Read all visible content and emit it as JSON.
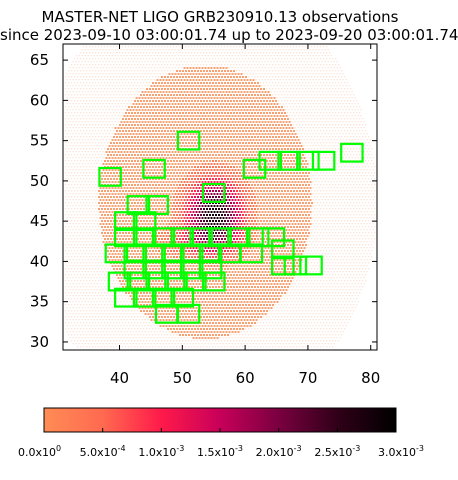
{
  "chart_data": {
    "type": "scatter",
    "title": "MASTER-NET LIGO GRB230910.13 observations",
    "subtitle": "since 2023-09-10 03:00:01.74 up to 2023-09-20 03:00:01.74",
    "xlim": [
      31,
      81
    ],
    "ylim": [
      29,
      67
    ],
    "x_ticks": [
      40,
      50,
      60,
      70,
      80
    ],
    "y_ticks": [
      30,
      35,
      40,
      45,
      50,
      55,
      60,
      65
    ],
    "grid": false,
    "probability_map": {
      "center": [
        53.5,
        47.5
      ],
      "radius_x": 17,
      "radius_y": 17,
      "peak": [
        55,
        46
      ],
      "peak_value": 0.003,
      "colorbar_min": 0,
      "colorbar_max": 0.003
    },
    "colorbar": {
      "ticks": [
        "0.0x10",
        "5.0x10",
        "1.0x10",
        "1.5x10",
        "2.0x10",
        "2.5x10",
        "3.0x10"
      ],
      "exponents": [
        "0",
        "-4",
        "-3",
        "-3",
        "-3",
        "-3",
        "-3"
      ],
      "colors": [
        "#ff8c55",
        "#ff6a50",
        "#ff1a4a",
        "#c8005a",
        "#7a0040",
        "#300018",
        "#000000"
      ]
    },
    "fields": [
      {
        "x": 51,
        "y": 55
      },
      {
        "x": 45.5,
        "y": 51.5
      },
      {
        "x": 38.5,
        "y": 50.5
      },
      {
        "x": 55,
        "y": 48.5
      },
      {
        "x": 61.5,
        "y": 51.5
      },
      {
        "x": 64,
        "y": 52.5
      },
      {
        "x": 67,
        "y": 52.5
      },
      {
        "x": 70,
        "y": 52.5
      },
      {
        "x": 72.5,
        "y": 52.5
      },
      {
        "x": 77,
        "y": 53.5
      },
      {
        "x": 43,
        "y": 47
      },
      {
        "x": 46,
        "y": 47
      },
      {
        "x": 41,
        "y": 45
      },
      {
        "x": 44,
        "y": 45
      },
      {
        "x": 41,
        "y": 43
      },
      {
        "x": 44,
        "y": 43
      },
      {
        "x": 47,
        "y": 43
      },
      {
        "x": 50,
        "y": 43
      },
      {
        "x": 53,
        "y": 43
      },
      {
        "x": 56,
        "y": 43
      },
      {
        "x": 59,
        "y": 43
      },
      {
        "x": 62,
        "y": 43
      },
      {
        "x": 64.5,
        "y": 43
      },
      {
        "x": 39.5,
        "y": 41
      },
      {
        "x": 42.5,
        "y": 41
      },
      {
        "x": 45.5,
        "y": 41
      },
      {
        "x": 48.5,
        "y": 41
      },
      {
        "x": 51.5,
        "y": 41
      },
      {
        "x": 54.5,
        "y": 41
      },
      {
        "x": 57.5,
        "y": 41
      },
      {
        "x": 61,
        "y": 41
      },
      {
        "x": 66,
        "y": 41.5
      },
      {
        "x": 66,
        "y": 39.5
      },
      {
        "x": 68,
        "y": 39.5
      },
      {
        "x": 70.5,
        "y": 39.5
      },
      {
        "x": 42.5,
        "y": 39
      },
      {
        "x": 45.5,
        "y": 39
      },
      {
        "x": 48.5,
        "y": 39
      },
      {
        "x": 51.5,
        "y": 39
      },
      {
        "x": 54.5,
        "y": 39
      },
      {
        "x": 40,
        "y": 37.5
      },
      {
        "x": 43,
        "y": 37.5
      },
      {
        "x": 46,
        "y": 37.5
      },
      {
        "x": 49,
        "y": 37.5
      },
      {
        "x": 52,
        "y": 37.5
      },
      {
        "x": 55,
        "y": 37.5
      },
      {
        "x": 41,
        "y": 35.5
      },
      {
        "x": 44,
        "y": 35.5
      },
      {
        "x": 47,
        "y": 35.5
      },
      {
        "x": 50,
        "y": 35.5
      },
      {
        "x": 47.5,
        "y": 33.5
      },
      {
        "x": 51,
        "y": 33.5
      }
    ],
    "field_width": 3.4,
    "field_height": 2.2,
    "field_color": "#00ff00"
  }
}
